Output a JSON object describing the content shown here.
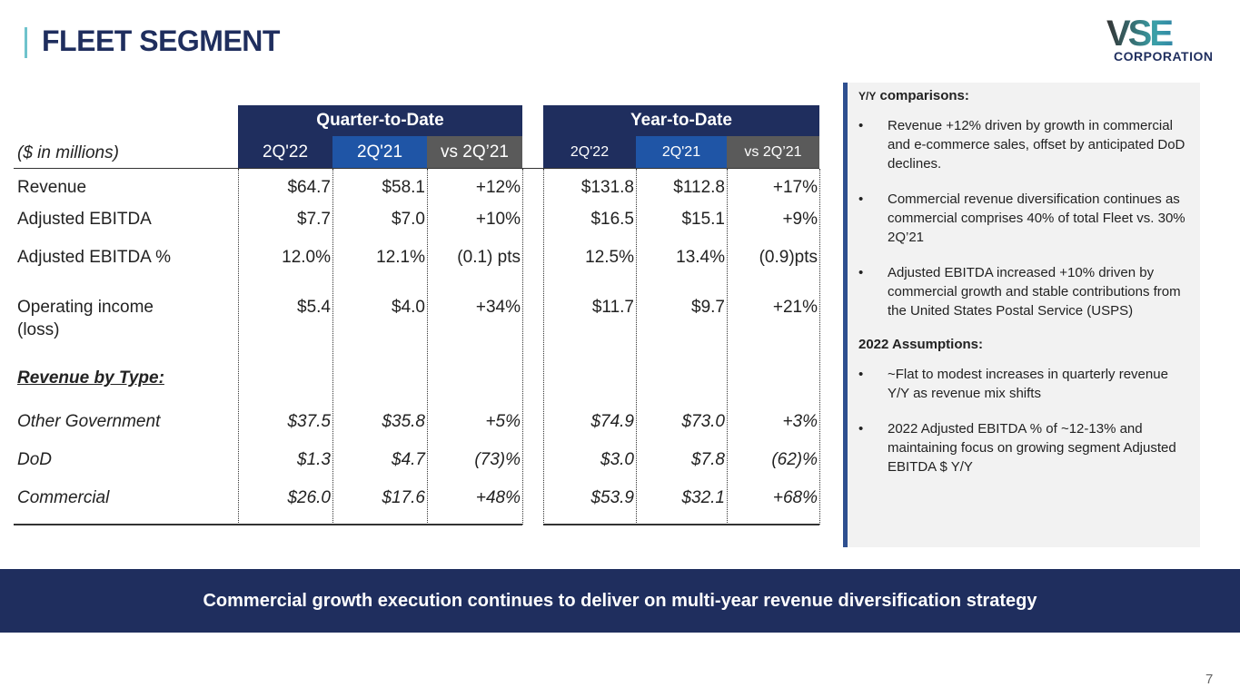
{
  "title": "FLEET SEGMENT",
  "logo": {
    "main": "VSE",
    "sub": "CORPORATION"
  },
  "table": {
    "units": "($ in millions)",
    "qtd_label": "Quarter-to-Date",
    "ytd_label": "Year-to-Date",
    "cols": [
      "2Q'22",
      "2Q'21",
      "vs 2Q’21"
    ],
    "rows": [
      {
        "label": "Revenue",
        "v": [
          "$64.7",
          "$58.1",
          "+12%",
          "$131.8",
          "$112.8",
          "+17%"
        ]
      },
      {
        "label": "Adjusted EBITDA",
        "v": [
          "$7.7",
          "$7.0",
          "+10%",
          "$16.5",
          "$15.1",
          "+9%"
        ]
      },
      {
        "label": "Adjusted EBITDA %",
        "v": [
          "12.0%",
          "12.1%",
          "(0.1) pts",
          "12.5%",
          "13.4%",
          "(0.9)pts"
        ]
      },
      {
        "label": "Operating income",
        "label2": "(loss)",
        "v": [
          "$5.4",
          "$4.0",
          "+34%",
          "$11.7",
          "$9.7",
          "+21%"
        ]
      },
      {
        "label": "Revenue by Type:",
        "v": [
          "",
          "",
          "",
          "",
          "",
          ""
        ]
      },
      {
        "label": "Other Government",
        "v": [
          "$37.5",
          "$35.8",
          "+5%",
          "$74.9",
          "$73.0",
          "+3%"
        ]
      },
      {
        "label": "DoD",
        "v": [
          "$1.3",
          "$4.7",
          "(73)%",
          "$3.0",
          "$7.8",
          "(62)%"
        ]
      },
      {
        "label": "Commercial",
        "v": [
          "$26.0",
          "$17.6",
          "+48%",
          "$53.9",
          "$32.1",
          "+68%"
        ]
      }
    ]
  },
  "panel": {
    "yy_prefix": "Y/Y",
    "yy_title": "comparisons:",
    "bullets1": [
      "Revenue +12% driven by growth in commercial and e-commerce sales, offset by anticipated DoD declines.",
      "Commercial revenue diversification continues as commercial comprises 40% of total Fleet vs. 30% 2Q’21",
      "Adjusted EBITDA increased +10% driven by commercial growth and stable contributions from the United States Postal Service (USPS)"
    ],
    "assump_title": "2022 Assumptions:",
    "bullets2": [
      "~Flat to modest increases in quarterly revenue Y/Y as revenue mix shifts",
      "2022 Adjusted EBITDA % of ~12-13% and maintaining focus on growing segment Adjusted EBITDA $ Y/Y"
    ],
    "bullet": "•"
  },
  "banner": "Commercial growth execution continues to deliver on multi-year revenue diversification strategy",
  "page_number": "7",
  "colors": {
    "navy": "#1f2e5e",
    "blue": "#1f55a6",
    "gray": "#5a5a5a"
  }
}
